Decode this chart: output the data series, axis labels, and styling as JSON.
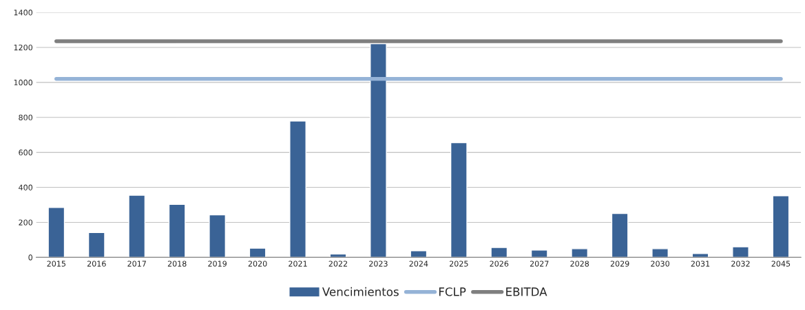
{
  "chart_data": {
    "type": "bar",
    "categories": [
      "2015",
      "2016",
      "2017",
      "2018",
      "2019",
      "2020",
      "2021",
      "2022",
      "2023",
      "2024",
      "2025",
      "2026",
      "2027",
      "2028",
      "2029",
      "2030",
      "2031",
      "2032",
      "2045"
    ],
    "series": [
      {
        "name": "Vencimientos",
        "color": "#3a6396",
        "values": [
          285,
          142,
          355,
          303,
          243,
          52,
          779,
          19,
          1221,
          37,
          655,
          56,
          41,
          49,
          251,
          49,
          22,
          60,
          352
        ]
      },
      {
        "name": "FCLP",
        "type": "line",
        "color": "#95b3d7",
        "values": [
          1020,
          1020,
          1020,
          1020,
          1020,
          1020,
          1020,
          1020,
          1020,
          1020,
          1020,
          1020,
          1020,
          1020,
          1020,
          1020,
          1020,
          1020,
          1020
        ]
      },
      {
        "name": "EBITDA",
        "type": "line",
        "color": "#7f7f7f",
        "values": [
          1235,
          1235,
          1235,
          1235,
          1235,
          1235,
          1235,
          1235,
          1235,
          1235,
          1235,
          1235,
          1235,
          1235,
          1235,
          1235,
          1235,
          1235,
          1235
        ]
      }
    ],
    "ylim": [
      0,
      1400
    ],
    "yticks": [
      0,
      200,
      400,
      600,
      800,
      1000,
      1200,
      1400
    ],
    "grid": "y",
    "legend": "bottom",
    "marker": "none",
    "line_style": "solid"
  }
}
